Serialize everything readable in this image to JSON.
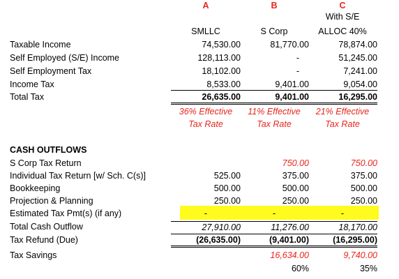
{
  "columns": {
    "letters": [
      "A",
      "B",
      "C"
    ],
    "c_line1": "With S/E",
    "names": [
      "SMLLC",
      "S Corp",
      "ALLOC 40%"
    ]
  },
  "income_rows": [
    {
      "label": "Taxable Income",
      "a": "74,530.00",
      "b": "81,770.00",
      "c": "78,874.00"
    },
    {
      "label": "Self Employed (S/E) Income",
      "a": "128,113.00",
      "b": "-",
      "c": "51,245.00"
    },
    {
      "label": "Self Employment Tax",
      "a": "18,102.00",
      "b": "-",
      "c": "7,241.00"
    },
    {
      "label": "Income Tax",
      "a": "8,533.00",
      "b": "9,401.00",
      "c": "9,054.00"
    }
  ],
  "total_tax": {
    "label": "Total Tax",
    "a": "26,635.00",
    "b": "9,401.00",
    "c": "16,295.00"
  },
  "effective": {
    "line1": [
      "36% Effective",
      "11% Effective",
      "21% Effective"
    ],
    "line2": [
      "Tax Rate",
      "Tax Rate",
      "Tax Rate"
    ]
  },
  "cash_outflows": {
    "heading": "CASH OUTFLOWS",
    "rows": [
      {
        "label": "S Corp Tax Return",
        "a": "",
        "b": "750.00",
        "c": "750.00"
      },
      {
        "label": "Individual Tax Return [w/ Sch. C(s)]",
        "a": "525.00",
        "b": "375.00",
        "c": "375.00"
      },
      {
        "label": "Bookkeeping",
        "a": "500.00",
        "b": "500.00",
        "c": "500.00"
      },
      {
        "label": "Projection & Planning",
        "a": "250.00",
        "b": "250.00",
        "c": "250.00"
      },
      {
        "label": "Estimated Tax Pmt(s) (if any)",
        "a": "-",
        "b": "-",
        "c": "-"
      }
    ],
    "total": {
      "label": "Total Cash Outflow",
      "a": "27,910.00",
      "b": "11,276.00",
      "c": "18,170.00"
    },
    "refund": {
      "label": "Tax Refund (Due)",
      "a": "(26,635.00)",
      "b": "(9,401.00)",
      "c": "(16,295.00)"
    },
    "savings": {
      "label": "Tax Savings",
      "b": "16,634.00",
      "c": "9,740.00"
    },
    "pct": {
      "b": "60%",
      "c": "35%"
    }
  },
  "colors": {
    "accent_red": "#e8261c",
    "highlight": "#fffb1f"
  }
}
